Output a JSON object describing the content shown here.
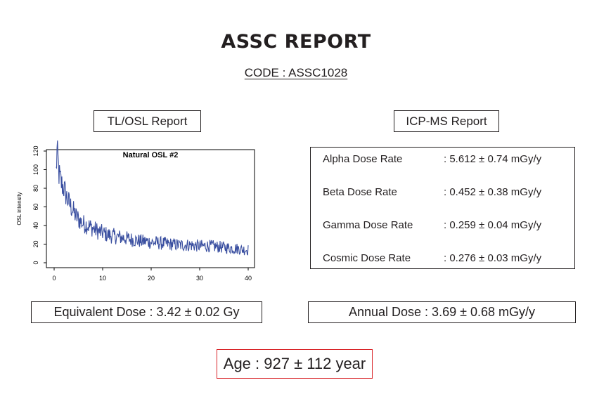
{
  "report": {
    "title": "ASSC REPORT",
    "code": "CODE : ASSC1028"
  },
  "tl_osl": {
    "heading": "TL/OSL Report",
    "equivalent_dose": "Equivalent Dose : 3.42 ± 0.02 Gy"
  },
  "icp_ms": {
    "heading": "ICP-MS Report",
    "rows": [
      {
        "label": "Alpha Dose Rate",
        "value": ": 5.612 ± 0.74 mGy/y"
      },
      {
        "label": "Beta Dose Rate",
        "value": ": 0.452 ± 0.38 mGy/y"
      },
      {
        "label": "Gamma Dose Rate",
        "value": ": 0.259 ± 0.04 mGy/y"
      },
      {
        "label": "Cosmic Dose Rate",
        "value": ": 0.276 ± 0.03 mGy/y"
      }
    ],
    "annual_dose": "Annual Dose : 3.69 ± 0.68 mGy/y"
  },
  "age": "Age : 927 ± 112 year",
  "chart_data": {
    "type": "line",
    "title": "Natural OSL #2",
    "xlabel": "",
    "ylabel": "OSL intensity",
    "xlim": [
      0,
      40
    ],
    "ylim": [
      0,
      120
    ],
    "x_ticks": [
      "0",
      "10",
      "20",
      "30",
      "40"
    ],
    "y_ticks": [
      "0",
      "20",
      "40",
      "60",
      "80",
      "100",
      "120"
    ],
    "line_color": "#3a4fa0",
    "grid": false,
    "series": [
      {
        "x": [
          0.4,
          0.6,
          0.8,
          1,
          1.5,
          2,
          2.5,
          3,
          3.5,
          4,
          4.5,
          5,
          5.5,
          6,
          7,
          8,
          9,
          10,
          11,
          12,
          13,
          14,
          15,
          16,
          17,
          18,
          19,
          20,
          22,
          24,
          26,
          28,
          30,
          32,
          34,
          36,
          38,
          39,
          40
        ],
        "y": [
          98,
          119,
          110,
          95,
          85,
          80,
          72,
          65,
          60,
          55,
          50,
          47,
          44,
          42,
          40,
          37,
          34,
          32,
          30,
          29,
          28,
          27,
          26,
          25,
          24,
          23,
          23,
          22,
          21,
          20,
          19,
          19,
          18,
          18,
          17,
          16,
          15,
          14,
          14
        ]
      }
    ]
  }
}
